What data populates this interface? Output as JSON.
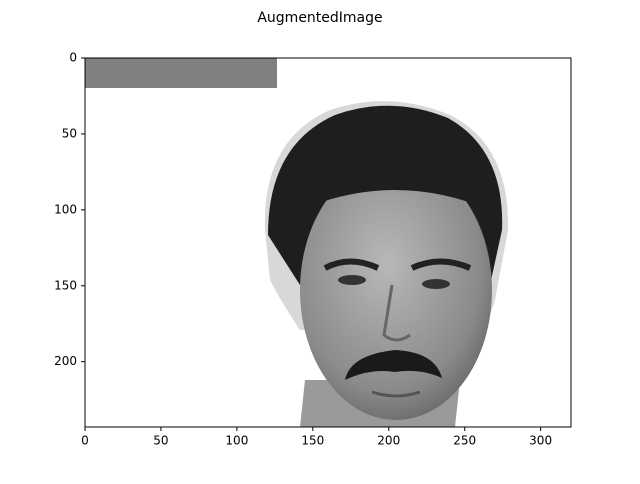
{
  "chart_data": {
    "type": "image",
    "title": "AugmentedImage",
    "xlim": [
      0,
      320
    ],
    "ylim": [
      0,
      243
    ],
    "y_inverted": true,
    "xticks": [
      0,
      50,
      100,
      150,
      200,
      250,
      300
    ],
    "yticks": [
      0,
      50,
      100,
      150,
      200
    ]
  }
}
